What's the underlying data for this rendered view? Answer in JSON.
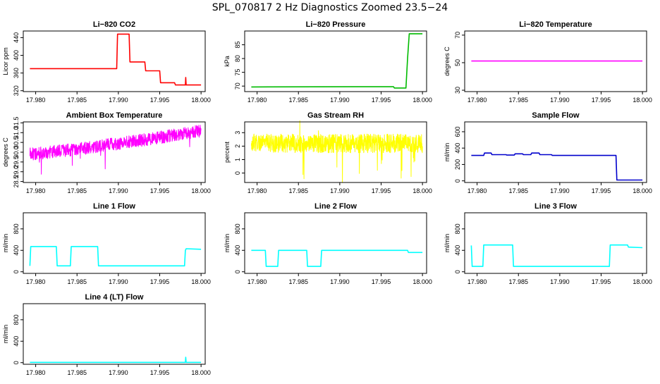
{
  "title": "SPL_070817  2 Hz Diagnostics Zoomed 23.5−24",
  "chart_data": [
    {
      "type": "line",
      "title": "Li−820 CO2",
      "ylabel": "Licor ppm",
      "xlim": [
        17.9785,
        18.0005
      ],
      "ylim": [
        318,
        455
      ],
      "xticks": [
        "17.980",
        "17.985",
        "17.990",
        "17.995",
        "18.000"
      ],
      "yticks": [
        "320",
        "360",
        "400",
        "440"
      ],
      "color": "#ff0000",
      "x": [
        17.9793,
        17.9898,
        17.9899,
        17.9913,
        17.9914,
        17.9932,
        17.9933,
        17.995,
        17.9951,
        17.9968,
        17.9969,
        17.9981,
        17.99815,
        17.9982,
        17.9983,
        18.0
      ],
      "y": [
        370,
        370,
        448,
        448,
        385,
        385,
        365,
        365,
        338,
        338,
        333,
        333,
        350,
        333,
        333,
        333
      ]
    },
    {
      "type": "line",
      "title": "Li−820 Pressure",
      "ylabel": "kPa",
      "xlim": [
        17.9785,
        18.0005
      ],
      "ylim": [
        68,
        90
      ],
      "xticks": [
        "17.980",
        "17.985",
        "17.990",
        "17.995",
        "18.000"
      ],
      "yticks": [
        "70",
        "75",
        "80",
        "85"
      ],
      "color": "#00bb00",
      "x": [
        17.9793,
        17.9965,
        17.9966,
        17.998,
        17.9982,
        17.9984,
        18.0
      ],
      "y": [
        69.7,
        69.8,
        69.3,
        69.3,
        80,
        89,
        89
      ]
    },
    {
      "type": "line",
      "title": "Li−820 Temperature",
      "ylabel": "degrees C",
      "xlim": [
        17.9785,
        18.0005
      ],
      "ylim": [
        29,
        73
      ],
      "xticks": [
        "17.980",
        "17.985",
        "17.990",
        "17.995",
        "18.000"
      ],
      "yticks": [
        "30",
        "50",
        "70"
      ],
      "color": "#ff00ff",
      "x": [
        17.9793,
        18.0
      ],
      "y": [
        51.2,
        51.2
      ]
    },
    {
      "type": "line",
      "title": "Ambient Box Temperature",
      "ylabel": "degrees C",
      "xlim": [
        17.9785,
        18.0005
      ],
      "ylim": [
        28.45,
        31.55
      ],
      "xticks": [
        "17.980",
        "17.985",
        "17.990",
        "17.995",
        "18.000"
      ],
      "yticks": [
        "28.5",
        "29.0",
        "29.5",
        "30.0",
        "30.5",
        "31.0",
        "31.5"
      ],
      "color": "#ff00ff",
      "x": [
        17.9793,
        17.985,
        17.99,
        17.995,
        18.0
      ],
      "y": [
        29.9,
        30.15,
        30.45,
        30.75,
        31.1
      ]
    },
    {
      "type": "line",
      "title": "Gas Stream RH",
      "ylabel": "percent",
      "xlim": [
        17.9785,
        18.0005
      ],
      "ylim": [
        -0.7,
        3.8
      ],
      "xticks": [
        "17.980",
        "17.985",
        "17.990",
        "17.995",
        "18.000"
      ],
      "yticks": [
        "0",
        "1",
        "2",
        "3"
      ],
      "color": "#ffff00",
      "x": [
        17.9793,
        18.0
      ],
      "y": [
        2.2,
        2.2
      ]
    },
    {
      "type": "line",
      "title": "Sample Flow",
      "ylabel": "ml/min",
      "xlim": [
        17.9785,
        18.0005
      ],
      "ylim": [
        -20,
        720
      ],
      "xticks": [
        "17.980",
        "17.985",
        "17.990",
        "17.995",
        "18.000"
      ],
      "yticks": [
        "0",
        "200",
        "400",
        "600"
      ],
      "color": "#0000cc",
      "x": [
        17.9793,
        17.9808,
        17.9809,
        17.9817,
        17.9818,
        17.9835,
        17.9836,
        17.9845,
        17.9846,
        17.9855,
        17.9856,
        17.9865,
        17.9866,
        17.9875,
        17.9876,
        17.989,
        17.9891,
        17.992,
        17.9968,
        17.9969,
        18.0
      ],
      "y": [
        310,
        310,
        340,
        340,
        320,
        320,
        315,
        315,
        330,
        330,
        320,
        320,
        340,
        340,
        320,
        320,
        310,
        310,
        310,
        10,
        10
      ]
    },
    {
      "type": "line",
      "title": "Line 1 Flow",
      "ylabel": "ml/min",
      "xlim": [
        17.9785,
        18.0005
      ],
      "ylim": [
        -30,
        1100
      ],
      "xticks": [
        "17.980",
        "17.985",
        "17.990",
        "17.995",
        "18.000"
      ],
      "yticks": [
        "0",
        "400",
        "800"
      ],
      "color": "#00ffff",
      "x": [
        17.9793,
        17.9794,
        17.9825,
        17.9826,
        17.9842,
        17.9843,
        17.9875,
        17.9876,
        17.998,
        17.9981,
        17.9982,
        18.0
      ],
      "y": [
        110,
        470,
        470,
        110,
        110,
        470,
        470,
        110,
        110,
        400,
        430,
        420
      ]
    },
    {
      "type": "line",
      "title": "Line 2 Flow",
      "ylabel": "ml/min",
      "xlim": [
        17.9785,
        18.0005
      ],
      "ylim": [
        -30,
        1100
      ],
      "xticks": [
        "17.980",
        "17.985",
        "17.990",
        "17.995",
        "18.000"
      ],
      "yticks": [
        "0",
        "400",
        "800"
      ],
      "color": "#00ffff",
      "x": [
        17.9793,
        17.981,
        17.9811,
        17.9825,
        17.9826,
        17.986,
        17.9861,
        17.9877,
        17.9878,
        17.9982,
        17.9983,
        18.0
      ],
      "y": [
        400,
        400,
        100,
        100,
        400,
        400,
        100,
        100,
        400,
        400,
        360,
        360
      ]
    },
    {
      "type": "line",
      "title": "Line 3 Flow",
      "ylabel": "ml/min",
      "xlim": [
        17.9785,
        18.0005
      ],
      "ylim": [
        -30,
        1100
      ],
      "xticks": [
        "17.980",
        "17.985",
        "17.990",
        "17.995",
        "18.000"
      ],
      "yticks": [
        "0",
        "400",
        "800"
      ],
      "color": "#00ffff",
      "x": [
        17.9793,
        17.9794,
        17.9807,
        17.9808,
        17.9843,
        17.9844,
        17.996,
        17.9961,
        17.9982,
        17.9983,
        18.0
      ],
      "y": [
        490,
        100,
        100,
        500,
        500,
        100,
        100,
        500,
        500,
        460,
        450
      ]
    },
    {
      "type": "line",
      "title": "Line 4 (LT) Flow",
      "ylabel": "ml/min",
      "xlim": [
        17.9785,
        18.0005
      ],
      "ylim": [
        -30,
        1100
      ],
      "xticks": [
        "17.980",
        "17.985",
        "17.990",
        "17.995",
        "18.000"
      ],
      "yticks": [
        "0",
        "400",
        "800"
      ],
      "color": "#00ffff",
      "x": [
        17.9793,
        17.9981,
        17.99815,
        17.9982,
        18.0
      ],
      "y": [
        5,
        5,
        100,
        5,
        5
      ]
    }
  ]
}
